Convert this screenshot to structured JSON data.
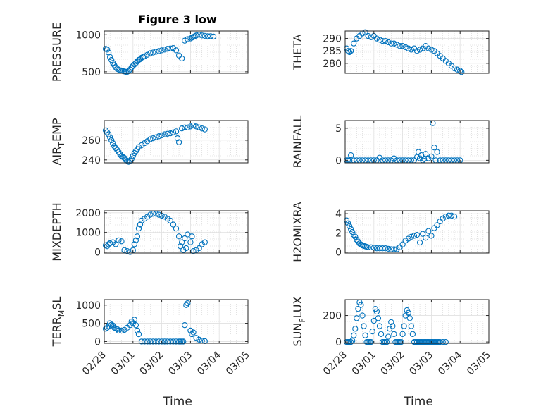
{
  "figure_title": "Figure 3 low",
  "x_axis_label": "Time",
  "x_tick_labels": [
    "02/28",
    "03/01",
    "03/02",
    "03/03",
    "03/04",
    "03/05"
  ],
  "marker_color": "#0072bd",
  "chart_data": [
    {
      "type": "scatter",
      "title": "Figure 3 low",
      "ylabel": "PRESSURE",
      "xlabel": "",
      "xlim": [
        0,
        5
      ],
      "ylim": [
        480,
        1050
      ],
      "yticks": [
        500,
        1000
      ],
      "grid": true,
      "x": [
        0.05,
        0.1,
        0.15,
        0.2,
        0.25,
        0.3,
        0.35,
        0.4,
        0.45,
        0.5,
        0.55,
        0.6,
        0.65,
        0.7,
        0.75,
        0.8,
        0.85,
        0.9,
        0.95,
        1.0,
        1.05,
        1.1,
        1.15,
        1.2,
        1.25,
        1.3,
        1.35,
        1.4,
        1.5,
        1.6,
        1.7,
        1.8,
        1.9,
        2.0,
        2.1,
        2.2,
        2.3,
        2.4,
        2.5,
        2.6,
        2.7,
        2.8,
        2.9,
        3.0,
        3.05,
        3.1,
        3.15,
        3.2,
        3.3,
        3.4,
        3.5,
        3.6,
        3.7,
        3.8
      ],
      "y": [
        810,
        800,
        760,
        700,
        660,
        620,
        590,
        560,
        540,
        530,
        520,
        515,
        510,
        505,
        500,
        500,
        510,
        530,
        560,
        580,
        600,
        620,
        640,
        660,
        670,
        690,
        700,
        710,
        730,
        750,
        760,
        770,
        780,
        790,
        800,
        810,
        815,
        820,
        790,
        720,
        680,
        920,
        940,
        950,
        960,
        970,
        980,
        990,
        1000,
        990,
        985,
        980,
        980,
        975
      ]
    },
    {
      "type": "scatter",
      "ylabel": "THETA",
      "xlabel": "",
      "xlim": [
        0,
        5
      ],
      "ylim": [
        276,
        293
      ],
      "yticks": [
        280,
        285,
        290
      ],
      "grid": true,
      "x": [
        0.05,
        0.1,
        0.15,
        0.2,
        0.3,
        0.4,
        0.5,
        0.6,
        0.7,
        0.8,
        0.9,
        1.0,
        1.1,
        1.2,
        1.3,
        1.4,
        1.5,
        1.6,
        1.7,
        1.8,
        1.9,
        2.0,
        2.1,
        2.2,
        2.3,
        2.4,
        2.5,
        2.6,
        2.7,
        2.8,
        2.9,
        3.0,
        3.1,
        3.2,
        3.3,
        3.4,
        3.5,
        3.6,
        3.7,
        3.8,
        3.9,
        4.0,
        4.05
      ],
      "y": [
        286,
        285,
        284.5,
        285,
        288,
        290,
        291,
        292,
        292.5,
        291,
        290.5,
        291,
        290,
        289.5,
        289,
        289,
        288.5,
        288,
        288,
        287.5,
        287,
        287,
        286.5,
        286,
        285.5,
        286,
        285,
        285.5,
        286,
        287,
        286,
        285.5,
        285,
        284,
        283,
        282,
        281,
        280,
        279,
        278,
        277.5,
        277,
        276.5
      ]
    },
    {
      "type": "scatter",
      "ylabel": "AIR_TEMP",
      "xlabel": "",
      "xlim": [
        0,
        5
      ],
      "ylim": [
        237,
        280
      ],
      "yticks": [
        240,
        260
      ],
      "grid": true,
      "x": [
        0.05,
        0.1,
        0.15,
        0.2,
        0.25,
        0.3,
        0.35,
        0.4,
        0.45,
        0.5,
        0.55,
        0.6,
        0.65,
        0.7,
        0.75,
        0.8,
        0.85,
        0.9,
        0.95,
        1.0,
        1.05,
        1.1,
        1.15,
        1.2,
        1.3,
        1.4,
        1.5,
        1.6,
        1.7,
        1.8,
        1.9,
        2.0,
        2.1,
        2.2,
        2.3,
        2.4,
        2.5,
        2.55,
        2.6,
        2.7,
        2.8,
        2.9,
        3.0,
        3.1,
        3.2,
        3.3,
        3.4,
        3.5
      ],
      "y": [
        270,
        268,
        266,
        263,
        260,
        257,
        254,
        252,
        250,
        248,
        246,
        244,
        243,
        242,
        240,
        239,
        238,
        239,
        241,
        244,
        247,
        249,
        251,
        253,
        255,
        257,
        259,
        261,
        262,
        263,
        264,
        265,
        266,
        266.5,
        267,
        268,
        269,
        262,
        258,
        272,
        273,
        273,
        274,
        275,
        274,
        273,
        272,
        271
      ]
    },
    {
      "type": "scatter",
      "ylabel": "RAINFALL",
      "xlabel": "",
      "xlim": [
        0,
        5
      ],
      "ylim": [
        -0.4,
        6.2
      ],
      "yticks": [
        0,
        5
      ],
      "grid": true,
      "x": [
        0.05,
        0.1,
        0.15,
        0.2,
        0.3,
        0.4,
        0.5,
        0.6,
        0.7,
        0.8,
        0.9,
        1.0,
        1.1,
        1.2,
        1.3,
        1.4,
        1.5,
        1.6,
        1.7,
        1.8,
        1.9,
        2.0,
        2.1,
        2.2,
        2.3,
        2.4,
        2.5,
        2.55,
        2.6,
        2.65,
        2.7,
        2.75,
        2.8,
        2.9,
        3.0,
        3.05,
        3.1,
        3.15,
        3.2,
        3.3,
        3.4,
        3.5,
        3.6,
        3.7,
        3.8,
        3.9,
        4.0
      ],
      "y": [
        0,
        0,
        0,
        0.8,
        0,
        0,
        0,
        0,
        0,
        0,
        0,
        0,
        0,
        0.4,
        0,
        0,
        0,
        0,
        0.3,
        0,
        0,
        0,
        0,
        0,
        0,
        0,
        0.5,
        1.3,
        0.3,
        0.8,
        0,
        0.2,
        1.0,
        0.3,
        0.6,
        5.8,
        2.0,
        0,
        1.3,
        0,
        0,
        0,
        0,
        0,
        0,
        0,
        0
      ]
    },
    {
      "type": "scatter",
      "ylabel": "MIXDEPTH",
      "xlabel": "",
      "xlim": [
        0,
        5
      ],
      "ylim": [
        -50,
        2100
      ],
      "yticks": [
        0,
        1000,
        2000
      ],
      "grid": true,
      "x": [
        0.05,
        0.1,
        0.15,
        0.2,
        0.3,
        0.4,
        0.5,
        0.6,
        0.7,
        0.8,
        0.9,
        1.0,
        1.05,
        1.1,
        1.15,
        1.2,
        1.25,
        1.3,
        1.4,
        1.5,
        1.6,
        1.7,
        1.8,
        1.9,
        2.0,
        2.1,
        2.2,
        2.3,
        2.4,
        2.5,
        2.6,
        2.65,
        2.7,
        2.75,
        2.8,
        2.85,
        2.9,
        3.0,
        3.05,
        3.1,
        3.2,
        3.3,
        3.4,
        3.5
      ],
      "y": [
        350,
        300,
        400,
        450,
        500,
        400,
        600,
        550,
        100,
        50,
        0,
        100,
        400,
        600,
        800,
        1200,
        1400,
        1600,
        1700,
        1800,
        1900,
        1950,
        1950,
        1900,
        1850,
        1800,
        1700,
        1600,
        1400,
        1200,
        800,
        300,
        500,
        100,
        700,
        200,
        900,
        500,
        800,
        50,
        100,
        200,
        400,
        500
      ]
    },
    {
      "type": "scatter",
      "ylabel": "H2OMIXRA",
      "xlabel": "",
      "xlim": [
        0,
        5
      ],
      "ylim": [
        -0.1,
        4.3
      ],
      "yticks": [
        0,
        2,
        4
      ],
      "grid": true,
      "x": [
        0.05,
        0.1,
        0.15,
        0.2,
        0.25,
        0.3,
        0.35,
        0.4,
        0.45,
        0.5,
        0.55,
        0.6,
        0.65,
        0.7,
        0.75,
        0.8,
        0.9,
        1.0,
        1.1,
        1.2,
        1.3,
        1.4,
        1.5,
        1.6,
        1.7,
        1.8,
        1.9,
        2.0,
        2.1,
        2.2,
        2.3,
        2.4,
        2.5,
        2.6,
        2.7,
        2.8,
        2.9,
        3.0,
        3.1,
        3.2,
        3.3,
        3.4,
        3.5,
        3.6,
        3.7,
        3.8
      ],
      "y": [
        3.3,
        3.0,
        2.7,
        2.4,
        2.1,
        1.8,
        1.6,
        1.3,
        1.1,
        0.9,
        0.8,
        0.7,
        0.65,
        0.6,
        0.55,
        0.5,
        0.5,
        0.45,
        0.4,
        0.4,
        0.4,
        0.4,
        0.35,
        0.3,
        0.3,
        0.3,
        0.5,
        0.8,
        1.2,
        1.4,
        1.6,
        1.7,
        1.8,
        1.0,
        1.9,
        1.5,
        2.2,
        1.7,
        2.5,
        2.8,
        3.2,
        3.5,
        3.7,
        3.8,
        3.8,
        3.7
      ]
    },
    {
      "type": "scatter",
      "ylabel": "TERR_MSL",
      "xlabel": "",
      "xlim": [
        0,
        5
      ],
      "ylim": [
        -50,
        1150
      ],
      "yticks": [
        0,
        500,
        1000
      ],
      "grid": true,
      "x": [
        0.05,
        0.1,
        0.15,
        0.2,
        0.25,
        0.3,
        0.35,
        0.4,
        0.45,
        0.5,
        0.6,
        0.7,
        0.8,
        0.9,
        0.95,
        1.0,
        1.05,
        1.1,
        1.15,
        1.2,
        1.3,
        1.4,
        1.5,
        1.6,
        1.7,
        1.8,
        1.9,
        2.0,
        2.1,
        2.2,
        2.3,
        2.4,
        2.5,
        2.6,
        2.65,
        2.7,
        2.75,
        2.8,
        2.85,
        2.9,
        3.0,
        3.05,
        3.1,
        3.2,
        3.3,
        3.4,
        3.5
      ],
      "y": [
        350,
        380,
        420,
        500,
        460,
        440,
        380,
        360,
        340,
        300,
        300,
        320,
        380,
        450,
        550,
        500,
        600,
        450,
        300,
        200,
        0,
        0,
        0,
        0,
        0,
        0,
        0,
        0,
        0,
        0,
        0,
        0,
        0,
        0,
        0,
        0,
        0,
        450,
        1000,
        1050,
        300,
        200,
        250,
        100,
        50,
        20,
        10
      ]
    },
    {
      "type": "scatter",
      "ylabel": "SUN_FLUX",
      "xlabel": "",
      "xlim": [
        0,
        5
      ],
      "ylim": [
        -10,
        320
      ],
      "yticks": [
        0,
        200
      ],
      "grid": true,
      "x": [
        0.05,
        0.1,
        0.15,
        0.2,
        0.25,
        0.3,
        0.35,
        0.4,
        0.45,
        0.5,
        0.55,
        0.6,
        0.65,
        0.7,
        0.75,
        0.8,
        0.85,
        0.9,
        0.95,
        1.0,
        1.05,
        1.1,
        1.15,
        1.2,
        1.25,
        1.3,
        1.35,
        1.4,
        1.45,
        1.5,
        1.55,
        1.6,
        1.65,
        1.7,
        1.75,
        1.8,
        1.85,
        1.9,
        1.95,
        2.0,
        2.05,
        2.1,
        2.15,
        2.2,
        2.25,
        2.3,
        2.35,
        2.4,
        2.45,
        2.5,
        2.55,
        2.6,
        2.65,
        2.7,
        2.75,
        2.8,
        2.85,
        2.9,
        2.95,
        3.0,
        3.05,
        3.1,
        3.15,
        3.2,
        3.25,
        3.3,
        3.4,
        3.5
      ],
      "y": [
        0,
        0,
        0,
        0,
        10,
        50,
        100,
        180,
        250,
        300,
        280,
        200,
        120,
        50,
        0,
        0,
        0,
        0,
        80,
        160,
        250,
        230,
        180,
        120,
        60,
        0,
        0,
        0,
        0,
        40,
        100,
        150,
        120,
        60,
        0,
        0,
        0,
        0,
        0,
        60,
        120,
        200,
        240,
        220,
        180,
        120,
        60,
        0,
        0,
        0,
        0,
        0,
        0,
        0,
        0,
        0,
        0,
        0,
        0,
        0,
        0,
        0,
        0,
        0,
        0,
        0,
        0,
        0
      ]
    }
  ]
}
